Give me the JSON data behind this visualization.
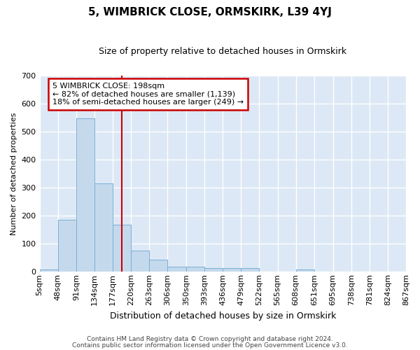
{
  "title": "5, WIMBRICK CLOSE, ORMSKIRK, L39 4YJ",
  "subtitle": "Size of property relative to detached houses in Ormskirk",
  "xlabel": "Distribution of detached houses by size in Ormskirk",
  "ylabel": "Number of detached properties",
  "bar_color": "#c5d9ed",
  "bar_edge_color": "#7aafd4",
  "background_color": "#dce8f5",
  "fig_background_color": "#ffffff",
  "grid_color": "#ffffff",
  "annotation_box_color": "#cc0000",
  "vline_color": "#cc0000",
  "vline_x": 198,
  "annotation_text": "5 WIMBRICK CLOSE: 198sqm\n← 82% of detached houses are smaller (1,139)\n18% of semi-detached houses are larger (249) →",
  "bin_edges": [
    5,
    48,
    91,
    134,
    177,
    220,
    263,
    306,
    350,
    393,
    436,
    479,
    522,
    565,
    608,
    651,
    695,
    738,
    781,
    824,
    867
  ],
  "bin_labels": [
    "5sqm",
    "48sqm",
    "91sqm",
    "134sqm",
    "177sqm",
    "220sqm",
    "263sqm",
    "306sqm",
    "350sqm",
    "393sqm",
    "436sqm",
    "479sqm",
    "522sqm",
    "565sqm",
    "608sqm",
    "651sqm",
    "695sqm",
    "738sqm",
    "781sqm",
    "824sqm",
    "867sqm"
  ],
  "counts": [
    8,
    186,
    548,
    315,
    168,
    75,
    42,
    17,
    17,
    12,
    12,
    12,
    0,
    0,
    8,
    0,
    0,
    0,
    0,
    0
  ],
  "ylim": [
    0,
    700
  ],
  "yticks": [
    0,
    100,
    200,
    300,
    400,
    500,
    600,
    700
  ],
  "footer_line1": "Contains HM Land Registry data © Crown copyright and database right 2024.",
  "footer_line2": "Contains public sector information licensed under the Open Government Licence v3.0.",
  "title_fontsize": 11,
  "subtitle_fontsize": 9,
  "ylabel_fontsize": 8,
  "xlabel_fontsize": 9,
  "tick_fontsize": 8,
  "annotation_fontsize": 8,
  "footer_fontsize": 6.5
}
